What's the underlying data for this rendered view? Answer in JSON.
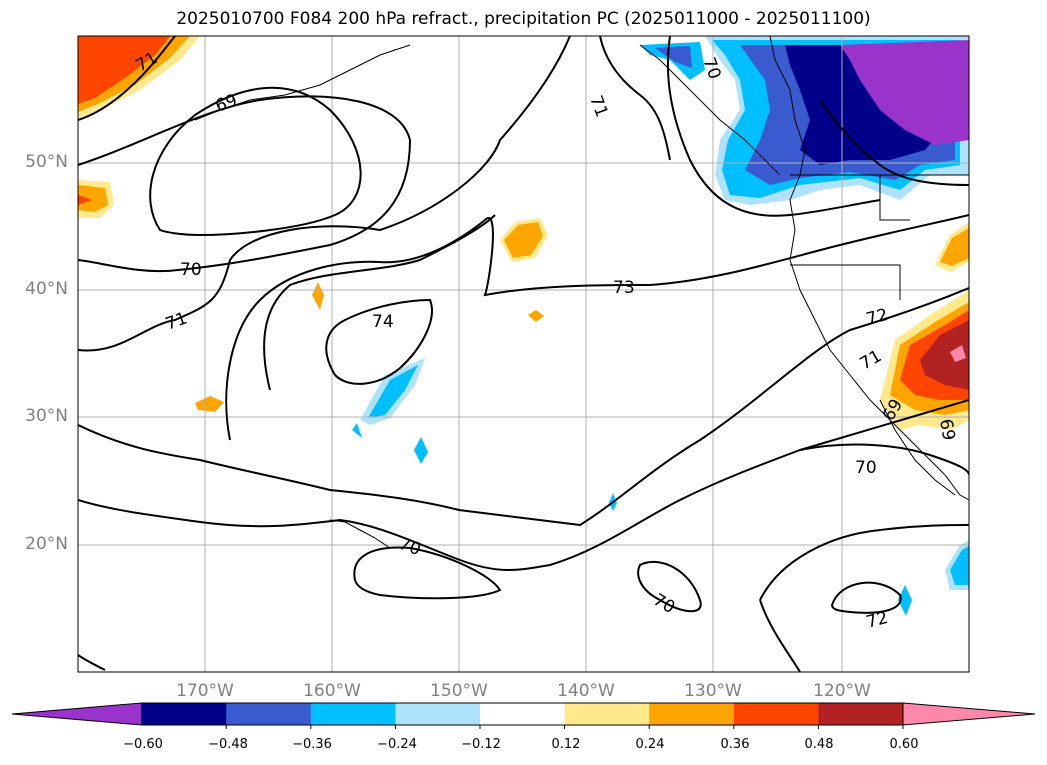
{
  "title": "2025010700 F084 200 hPa refract., precipitation PC (2025011000 - 2025011100)",
  "lat_labels": [
    "50°N",
    "40°N",
    "30°N",
    "20°N"
  ],
  "lon_labels": [
    "170°W",
    "160°W",
    "150°W",
    "140°W",
    "130°W",
    "120°W"
  ],
  "contour_labels": [
    "71",
    "69",
    "70",
    "71",
    "74",
    "73",
    "72",
    "71",
    "70",
    "70",
    "70",
    "70",
    "72",
    "71",
    "69",
    "69"
  ],
  "colorbar": {
    "ticks": [
      "−0.60",
      "−0.48",
      "−0.36",
      "−0.24",
      "−0.12",
      "0.12",
      "0.24",
      "0.36",
      "0.48",
      "0.60"
    ],
    "colors": [
      "#9933cc",
      "#00008b",
      "#3a5bd0",
      "#00bfff",
      "#aee2fb",
      "#ffffff",
      "#ffe98c",
      "#ffa500",
      "#ff4500",
      "#b22222",
      "#ff88aa"
    ]
  }
}
